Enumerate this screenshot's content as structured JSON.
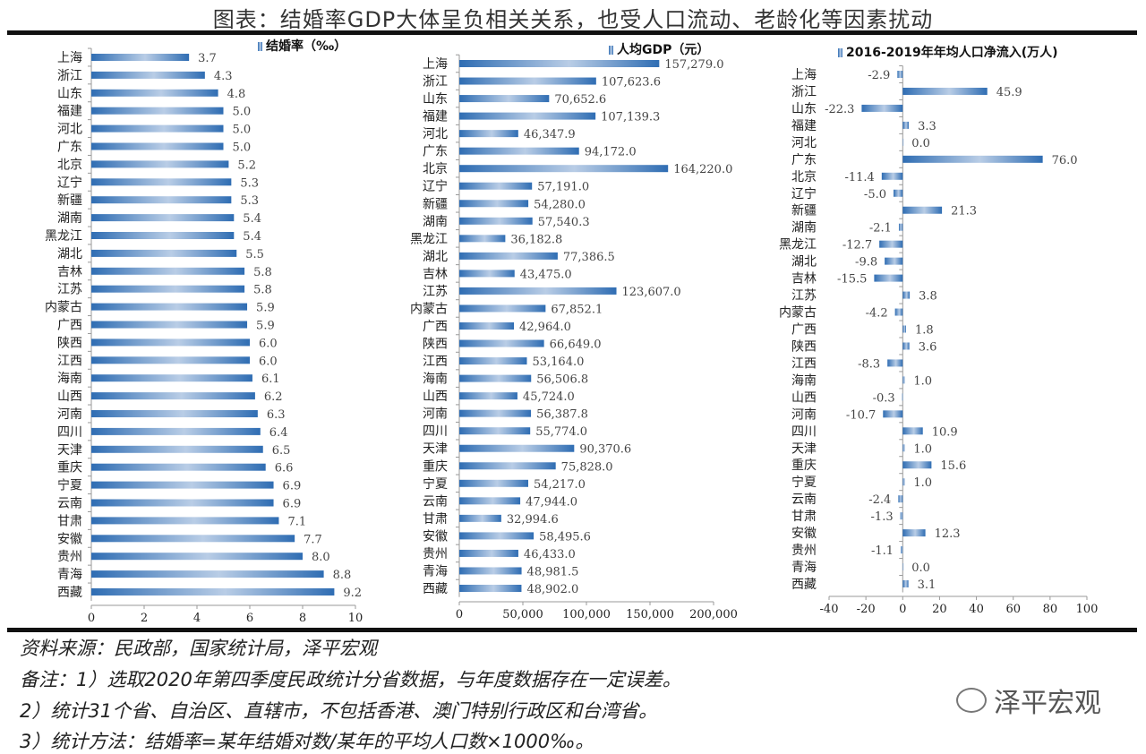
{
  "title": "图表：结婚率GDP大体呈负相关关系，也受人口流动、老龄化等因素扰动",
  "footer": {
    "source": "资料来源：民政部，国家统计局，泽平宏观",
    "note1": "备注：1）选取2020年第四季度民政统计分省数据，与年度数据存在一定误差。",
    "note2": "2）统计31个省、自治区、直辖市，不包括香港、澳门特别行政区和台湾省。",
    "note3": "3）统计方法：结婚率=某年结婚对数/某年的平均人口数×1000‰。"
  },
  "logo": "泽平宏观",
  "colors": {
    "bar": "#2f6db3",
    "bar_light": "#b9cde6"
  },
  "chart_data": [
    {
      "type": "bar",
      "orientation": "horizontal",
      "legend": "结婚率（‰）",
      "legend_position": "top-right",
      "categories": [
        "上海",
        "浙江",
        "山东",
        "福建",
        "河北",
        "广东",
        "北京",
        "辽宁",
        "新疆",
        "湖南",
        "黑龙江",
        "湖北",
        "吉林",
        "江苏",
        "内蒙古",
        "广西",
        "陕西",
        "江西",
        "海南",
        "山西",
        "河南",
        "四川",
        "天津",
        "重庆",
        "宁夏",
        "云南",
        "甘肃",
        "安徽",
        "贵州",
        "青海",
        "西藏"
      ],
      "values": [
        3.7,
        4.3,
        4.8,
        5.0,
        5.0,
        5.0,
        5.2,
        5.3,
        5.3,
        5.4,
        5.4,
        5.5,
        5.8,
        5.8,
        5.9,
        5.9,
        6.0,
        6.0,
        6.1,
        6.2,
        6.3,
        6.4,
        6.5,
        6.6,
        6.9,
        6.9,
        7.1,
        7.7,
        8.0,
        8.8,
        9.2
      ],
      "xlim": [
        0,
        10
      ],
      "ticks": [
        "0",
        "2",
        "4",
        "6",
        "8",
        "10"
      ],
      "grid": false
    },
    {
      "type": "bar",
      "orientation": "horizontal",
      "legend": "人均GDP（元）",
      "legend_position": "top-right",
      "categories": [
        "上海",
        "浙江",
        "山东",
        "福建",
        "河北",
        "广东",
        "北京",
        "辽宁",
        "新疆",
        "湖南",
        "黑龙江",
        "湖北",
        "吉林",
        "江苏",
        "内蒙古",
        "广西",
        "陕西",
        "江西",
        "海南",
        "山西",
        "河南",
        "四川",
        "天津",
        "重庆",
        "宁夏",
        "云南",
        "甘肃",
        "安徽",
        "贵州",
        "青海",
        "西藏"
      ],
      "values": [
        157279.0,
        107623.6,
        70652.6,
        107139.3,
        46347.9,
        94172.0,
        164220.0,
        57191.0,
        54280.0,
        57540.3,
        36182.8,
        77386.5,
        43475.0,
        123607.0,
        67852.1,
        42964.0,
        66649.0,
        53164.0,
        56506.8,
        45724.0,
        56387.8,
        55774.0,
        90370.6,
        75828.0,
        54217.0,
        47944.0,
        32994.6,
        58495.6,
        46433.0,
        48981.5,
        48902.0
      ],
      "xlim": [
        0,
        200000
      ],
      "ticks": [
        "0",
        "50,000",
        "100,000",
        "150,000",
        "200,000"
      ],
      "grid": false
    },
    {
      "type": "bar",
      "orientation": "horizontal",
      "legend": "2016-2019年年均人口净流入(万人)",
      "legend_position": "top",
      "categories": [
        "上海",
        "浙江",
        "山东",
        "福建",
        "河北",
        "广东",
        "北京",
        "辽宁",
        "新疆",
        "湖南",
        "黑龙江",
        "湖北",
        "吉林",
        "江苏",
        "内蒙古",
        "广西",
        "陕西",
        "江西",
        "海南",
        "山西",
        "河南",
        "四川",
        "天津",
        "重庆",
        "宁夏",
        "云南",
        "甘肃",
        "安徽",
        "贵州",
        "青海",
        "西藏"
      ],
      "values": [
        -2.9,
        45.9,
        -22.3,
        3.3,
        0.0,
        76.0,
        -11.4,
        -5.0,
        21.3,
        -2.1,
        -12.7,
        -9.8,
        -15.5,
        3.8,
        -4.2,
        1.8,
        3.6,
        -8.3,
        1.0,
        -0.3,
        -10.7,
        10.9,
        1.0,
        15.6,
        1.0,
        -2.4,
        -1.3,
        12.3,
        -1.1,
        0.0,
        3.1
      ],
      "xlim": [
        -40,
        100
      ],
      "ticks": [
        "-40",
        "-20",
        "0",
        "20",
        "40",
        "60",
        "80",
        "100"
      ],
      "grid": false
    }
  ]
}
